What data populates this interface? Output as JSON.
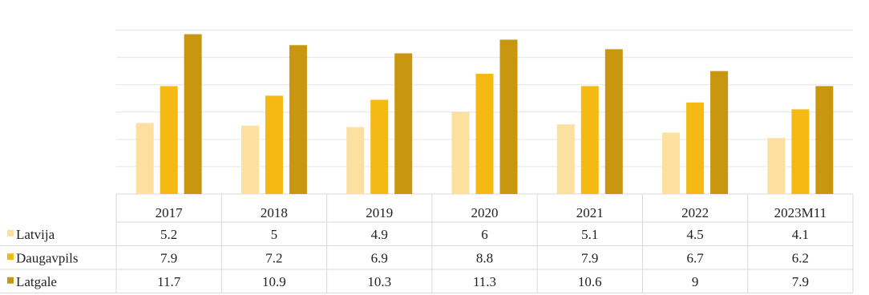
{
  "chart_data": {
    "type": "bar",
    "title": "",
    "xlabel": "",
    "ylabel": "",
    "ylim": [
      0,
      13.5
    ],
    "grid": true,
    "legend": "bottom-left data table",
    "categories": [
      "2017",
      "2018",
      "2019",
      "2020",
      "2021",
      "2022",
      "2023M11"
    ],
    "series": [
      {
        "name": "Latvija",
        "color": "#fbe0a0",
        "values": [
          5.2,
          5,
          4.9,
          6,
          5.1,
          4.5,
          4.1
        ],
        "labels": [
          "5.2",
          "5",
          "4.9",
          "6",
          "5.1",
          "4.5",
          "4.1"
        ]
      },
      {
        "name": "Daugavpils",
        "color": "#f5b914",
        "values": [
          7.9,
          7.2,
          6.9,
          8.8,
          7.9,
          6.7,
          6.2
        ],
        "labels": [
          "7.9",
          "7.2",
          "6.9",
          "8.8",
          "7.9",
          "6.7",
          "6.2"
        ]
      },
      {
        "name": "Latgale",
        "color": "#c8960f",
        "values": [
          11.7,
          10.9,
          10.3,
          11.3,
          10.6,
          9,
          7.9
        ],
        "labels": [
          "11.7",
          "10.9",
          "10.3",
          "11.3",
          "10.6",
          "9",
          "7.9"
        ]
      }
    ]
  }
}
